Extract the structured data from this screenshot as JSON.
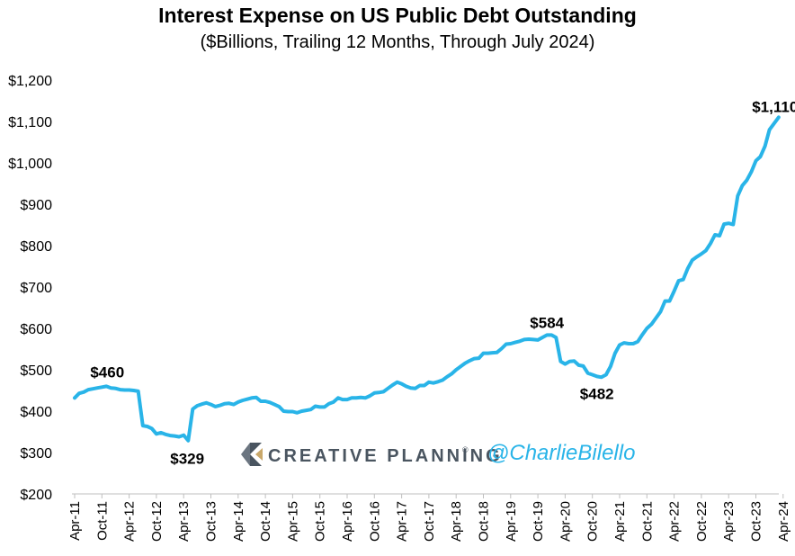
{
  "chart_data": {
    "type": "line",
    "title": "Interest Expense on US Public Debt Outstanding",
    "subtitle": "($Billions, Trailing 12 Months, Through July 2024)",
    "ylim": [
      200,
      1200
    ],
    "yticks": [
      200,
      300,
      400,
      500,
      600,
      700,
      800,
      900,
      1000,
      1100,
      1200
    ],
    "ytick_labels": [
      "$200",
      "$300",
      "$400",
      "$500",
      "$600",
      "$700",
      "$800",
      "$900",
      "$1,000",
      "$1,100",
      "$1,200"
    ],
    "xtick_labels": [
      "Apr-11",
      "Oct-11",
      "Apr-12",
      "Oct-12",
      "Apr-13",
      "Oct-13",
      "Apr-14",
      "Oct-14",
      "Apr-15",
      "Oct-15",
      "Apr-16",
      "Oct-16",
      "Apr-17",
      "Oct-17",
      "Apr-18",
      "Oct-18",
      "Apr-19",
      "Oct-19",
      "Apr-20",
      "Oct-20",
      "Apr-21",
      "Oct-21",
      "Apr-22",
      "Oct-22",
      "Apr-23",
      "Oct-23",
      "Apr-24"
    ],
    "line_color": "#29b4e8",
    "series": [
      {
        "values": [
          432,
          443,
          446,
          452,
          454,
          456,
          458,
          460,
          456,
          455,
          452,
          451,
          451,
          450,
          448,
          365,
          363,
          358,
          345,
          348,
          344,
          341,
          340,
          338,
          342,
          329,
          405,
          413,
          417,
          420,
          416,
          411,
          414,
          418,
          419,
          416,
          422,
          426,
          429,
          432,
          433,
          424,
          424,
          421,
          416,
          411,
          400,
          399,
          399,
          396,
          400,
          402,
          404,
          412,
          410,
          410,
          418,
          422,
          432,
          428,
          428,
          432,
          432,
          433,
          432,
          437,
          444,
          445,
          447,
          455,
          463,
          470,
          466,
          460,
          456,
          455,
          462,
          462,
          470,
          468,
          471,
          475,
          483,
          490,
          500,
          508,
          516,
          522,
          527,
          528,
          540,
          540,
          541,
          542,
          551,
          562,
          563,
          566,
          569,
          573,
          574,
          573,
          572,
          578,
          584,
          584,
          578,
          520,
          514,
          520,
          521,
          511,
          509,
          492,
          488,
          484,
          482,
          488,
          508,
          540,
          560,
          565,
          563,
          563,
          568,
          585,
          600,
          610,
          625,
          640,
          666,
          666,
          690,
          715,
          718,
          745,
          765,
          773,
          780,
          788,
          805,
          826,
          824,
          852,
          854,
          851,
          920,
          945,
          958,
          978,
          1005,
          1015,
          1040,
          1080,
          1095,
          1110
        ]
      }
    ],
    "annotations": [
      {
        "index": 7,
        "value": 460,
        "label": "$460"
      },
      {
        "index": 25,
        "value": 329,
        "label": "$329"
      },
      {
        "index": 104,
        "value": 584,
        "label": "$584"
      },
      {
        "index": 116,
        "value": 482,
        "label": "$482"
      },
      {
        "index": 155,
        "value": 1110,
        "label": "$1,110"
      }
    ]
  },
  "watermark": {
    "brand": "CREATIVE PLANNING",
    "trademark": "®",
    "handle": "@CharlieBilello"
  }
}
